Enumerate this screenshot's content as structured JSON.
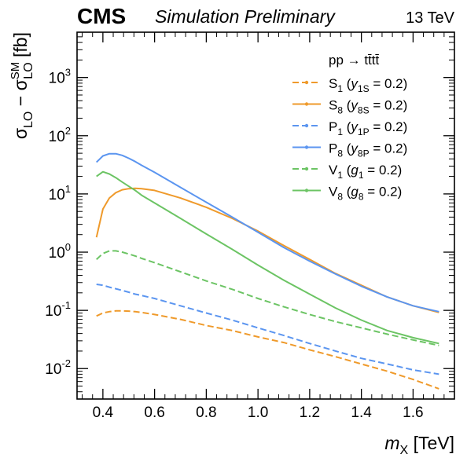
{
  "header": {
    "experiment": "CMS",
    "status": "Simulation Preliminary",
    "energy": "13 TeV"
  },
  "chart_data": {
    "type": "line",
    "title": "",
    "xlabel": "m_X [TeV]",
    "ylabel": "σ_LO − σ_LO^SM [fb]",
    "xlim": [
      0.3,
      1.76
    ],
    "ylim": [
      0.003,
      6000
    ],
    "yscale": "log",
    "grid": false,
    "legend_position": "top-right",
    "legend_title": "pp → tt̄tt̄",
    "xticks": [
      "0.4",
      "0.6",
      "0.8",
      "1.0",
      "1.2",
      "1.4",
      "1.6"
    ],
    "yticks": [
      "10^-2",
      "10^-1",
      "10^0",
      "10^1",
      "10^2",
      "10^3"
    ],
    "x": [
      0.375,
      0.4,
      0.425,
      0.45,
      0.475,
      0.5,
      0.525,
      0.55,
      0.6,
      0.7,
      0.8,
      0.9,
      1.0,
      1.1,
      1.2,
      1.3,
      1.4,
      1.5,
      1.6,
      1.7
    ],
    "series": [
      {
        "name": "S₁ (y₁S = 0.2)",
        "color": "#ef9a2b",
        "dash": "dashed",
        "values": [
          0.08,
          0.09,
          0.095,
          0.098,
          0.098,
          0.097,
          0.095,
          0.092,
          0.085,
          0.07,
          0.055,
          0.045,
          0.035,
          0.028,
          0.021,
          0.016,
          0.012,
          0.009,
          0.0065,
          0.0045
        ]
      },
      {
        "name": "S₈ (y₈S = 0.2)",
        "color": "#ef9a2b",
        "dash": "solid",
        "values": [
          1.8,
          5.5,
          8.5,
          10.5,
          11.8,
          12.3,
          12.5,
          12.3,
          11.5,
          8.5,
          5.9,
          3.8,
          2.3,
          1.3,
          0.75,
          0.43,
          0.27,
          0.17,
          0.12,
          0.092
        ]
      },
      {
        "name": "P₁ (y₁P = 0.2)",
        "color": "#5b95f0",
        "dash": "dashed",
        "values": [
          0.28,
          0.27,
          0.25,
          0.235,
          0.22,
          0.205,
          0.19,
          0.18,
          0.16,
          0.12,
          0.09,
          0.068,
          0.05,
          0.037,
          0.027,
          0.02,
          0.015,
          0.012,
          0.0095,
          0.008
        ]
      },
      {
        "name": "P₈ (y₈P = 0.2)",
        "color": "#5b95f0",
        "dash": "solid",
        "values": [
          35,
          45,
          49,
          49,
          46,
          41,
          36,
          31,
          23.5,
          13,
          7.2,
          4.0,
          2.2,
          1.2,
          0.7,
          0.42,
          0.26,
          0.17,
          0.12,
          0.095
        ]
      },
      {
        "name": "V₁ (g₁ = 0.2)",
        "color": "#6cc464",
        "dash": "dashed",
        "values": [
          0.75,
          0.95,
          1.05,
          1.05,
          1.0,
          0.93,
          0.86,
          0.78,
          0.66,
          0.46,
          0.32,
          0.23,
          0.16,
          0.115,
          0.085,
          0.064,
          0.05,
          0.039,
          0.031,
          0.025
        ]
      },
      {
        "name": "V₈ (g₈ = 0.2)",
        "color": "#6cc464",
        "dash": "solid",
        "values": [
          20,
          24,
          22,
          19,
          16,
          13.5,
          11.5,
          9.5,
          7.0,
          3.8,
          2.05,
          1.12,
          0.6,
          0.33,
          0.19,
          0.11,
          0.068,
          0.045,
          0.034,
          0.027
        ]
      }
    ]
  }
}
